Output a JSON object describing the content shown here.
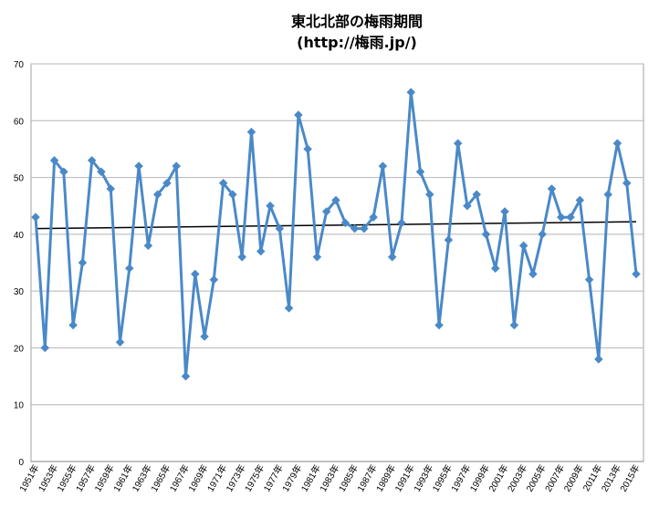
{
  "chart_data": {
    "type": "line",
    "title": "東北北部の梅雨期間",
    "subtitle": "(http://梅雨.jp/)",
    "xlabel": "",
    "ylabel": "",
    "ylim": [
      0,
      70
    ],
    "yticks": [
      0,
      10,
      20,
      30,
      40,
      50,
      60,
      70
    ],
    "grid": true,
    "legend": "none",
    "categories": [
      "1951年",
      "1952年",
      "1953年",
      "1954年",
      "1955年",
      "1956年",
      "1957年",
      "1958年",
      "1959年",
      "1960年",
      "1961年",
      "1962年",
      "1963年",
      "1964年",
      "1965年",
      "1966年",
      "1967年",
      "1968年",
      "1969年",
      "1970年",
      "1971年",
      "1972年",
      "1973年",
      "1974年",
      "1975年",
      "1976年",
      "1977年",
      "1978年",
      "1979年",
      "1980年",
      "1981年",
      "1982年",
      "1983年",
      "1984年",
      "1985年",
      "1986年",
      "1987年",
      "1988年",
      "1989年",
      "1990年",
      "1991年",
      "1992年",
      "1993年",
      "1994年",
      "1995年",
      "1996年",
      "1997年",
      "1998年",
      "1999年",
      "2000年",
      "2001年",
      "2002年",
      "2003年",
      "2004年",
      "2005年",
      "2006年",
      "2007年",
      "2008年",
      "2009年",
      "2010年",
      "2011年",
      "2012年",
      "2013年",
      "2014年",
      "2015年"
    ],
    "x_tick_labels": [
      "1951年",
      "1953年",
      "1955年",
      "1957年",
      "1959年",
      "1961年",
      "1963年",
      "1965年",
      "1967年",
      "1969年",
      "1971年",
      "1973年",
      "1975年",
      "1977年",
      "1979年",
      "1981年",
      "1983年",
      "1985年",
      "1987年",
      "1989年",
      "1991年",
      "1993年",
      "1995年",
      "1997年",
      "1999年",
      "2001年",
      "2003年",
      "2005年",
      "2007年",
      "2009年",
      "2011年",
      "2013年",
      "2015年"
    ],
    "series": [
      {
        "values": [
          43,
          20,
          53,
          51,
          24,
          35,
          53,
          51,
          48,
          21,
          34,
          52,
          38,
          47,
          49,
          52,
          15,
          33,
          22,
          32,
          49,
          47,
          36,
          58,
          37,
          45,
          41,
          27,
          61,
          55,
          36,
          44,
          46,
          42,
          41,
          41,
          43,
          52,
          36,
          42,
          65,
          51,
          47,
          24,
          39,
          56,
          45,
          47,
          40,
          34,
          44,
          24,
          38,
          33,
          40,
          48,
          43,
          43,
          46,
          32,
          18,
          47,
          56,
          49,
          33
        ],
        "color": "#4a89c8"
      }
    ],
    "trendline": {
      "type": "linear",
      "start": 41.0,
      "end": 42.2,
      "color": "#000000"
    }
  }
}
